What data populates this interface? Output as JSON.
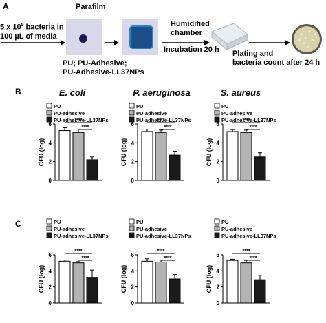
{
  "panel_labels": {
    "a": "A",
    "b": "B",
    "c": "C"
  },
  "workflow": {
    "inoculum_line1": "5 x 10",
    "inoculum_sup": "5",
    "inoculum_line1_suffix": " bacteria in",
    "inoculum_line2": "100 µL of media",
    "parafilm": "Parafilm",
    "samples_line1": "PU; PU-Adhesive;",
    "samples_line2": "PU-Adhesive-LL37NPs",
    "chamber_line1": "Humidified",
    "chamber_line2": "chamber",
    "incubation": "Incubation 20 h",
    "plating_line1": "Plating and",
    "plating_line2": "bacteria count after 24 h"
  },
  "organisms": [
    "E. coli",
    "P. aeruginosa",
    "S. aureus"
  ],
  "colors": {
    "pu": "#ffffff",
    "pu_adhesive": "#b3b3b3",
    "ll37": "#1a1a1a",
    "well_blue": "#1a4f8a",
    "sample_bg": "#d8d8ea"
  },
  "chart_data": [
    {
      "type": "bar",
      "panel": "B",
      "title": "E. coli",
      "ylabel": "CFU (log)",
      "ylim": [
        0,
        6
      ],
      "yticks": [
        "0",
        "2",
        "4",
        "6"
      ],
      "legend_position": "top-left",
      "categories": [
        "PU",
        "PU-adhesive",
        "PU-adhesive-LL37NPs"
      ],
      "values": [
        5.3,
        5.1,
        2.2
      ],
      "errors": [
        0.3,
        0.35,
        0.3
      ],
      "significance": [
        {
          "label": "****"
        },
        {
          "label": "****"
        }
      ]
    },
    {
      "type": "bar",
      "panel": "B",
      "title": "P. aeruginosa",
      "ylabel": "CFU (log)",
      "ylim": [
        0,
        6
      ],
      "yticks": [
        "0",
        "2",
        "4",
        "6"
      ],
      "legend_position": "top-left",
      "categories": [
        "PU",
        "PU-adhesive",
        "PU-adhesive-LL37NPs"
      ],
      "values": [
        5.2,
        5.1,
        2.7
      ],
      "errors": [
        0.25,
        0.25,
        0.4
      ],
      "significance": [
        {
          "label": "****"
        },
        {
          "label": "****"
        }
      ]
    },
    {
      "type": "bar",
      "panel": "B",
      "title": "S. aureus",
      "ylabel": "CFU (log)",
      "ylim": [
        0,
        6
      ],
      "yticks": [
        "0",
        "2",
        "4",
        "6"
      ],
      "legend_position": "top-left",
      "categories": [
        "PU",
        "PU-adhesive",
        "PU-adhesive-LL37NPs"
      ],
      "values": [
        5.2,
        5.1,
        2.5
      ],
      "errors": [
        0.2,
        0.25,
        0.45
      ],
      "significance": [
        {
          "label": "****"
        },
        {
          "label": "****"
        }
      ]
    },
    {
      "type": "bar",
      "panel": "C",
      "title": "",
      "ylabel": "CFU (log)",
      "ylim": [
        0,
        6
      ],
      "yticks": [
        "0",
        "2",
        "4",
        "6"
      ],
      "legend_position": "top-left",
      "categories": [
        "PU",
        "PU-adhesive",
        "PU-adhesive-LL37NPs"
      ],
      "values": [
        5.2,
        5.0,
        3.2
      ],
      "errors": [
        0.15,
        0.15,
        0.9
      ],
      "significance": [
        {
          "label": "****"
        },
        {
          "label": "****"
        }
      ]
    },
    {
      "type": "bar",
      "panel": "C",
      "title": "",
      "ylabel": "CFU (log)",
      "ylim": [
        0,
        6
      ],
      "yticks": [
        "0",
        "2",
        "4",
        "6"
      ],
      "legend_position": "top-left",
      "categories": [
        "PU",
        "PU-adhesive",
        "PU-adhesive-LL37NPs"
      ],
      "values": [
        5.2,
        5.1,
        3.0
      ],
      "errors": [
        0.3,
        0.25,
        0.55
      ],
      "significance": [
        {
          "label": "****"
        },
        {
          "label": "****"
        }
      ]
    },
    {
      "type": "bar",
      "panel": "C",
      "title": "",
      "ylabel": "CFU (log)",
      "ylim": [
        0,
        6
      ],
      "yticks": [
        "0",
        "2",
        "4",
        "6"
      ],
      "legend_position": "top-left",
      "categories": [
        "PU",
        "PU-adhesive",
        "PU-adhesive-LL37NPs"
      ],
      "values": [
        5.3,
        5.0,
        2.9
      ],
      "errors": [
        0.15,
        0.3,
        0.55
      ],
      "significance": [
        {
          "label": "****"
        },
        {
          "label": "****"
        }
      ]
    }
  ]
}
